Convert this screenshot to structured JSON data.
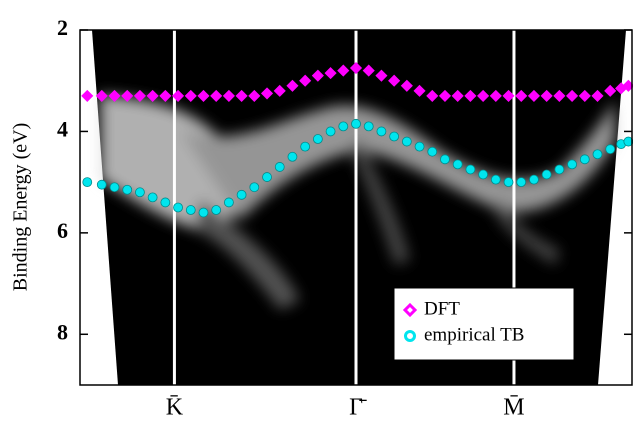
{
  "chart_data": {
    "type": "scatter",
    "y_label": "Binding Energy (eV)",
    "ylim": [
      9,
      2
    ],
    "yticks": [
      2,
      4,
      6,
      8
    ],
    "xlim": [
      -1.52,
      1.52
    ],
    "xticks": [
      {
        "value": -1,
        "label": "K̄"
      },
      {
        "value": 0,
        "label": "Γ̄"
      },
      {
        "value": 0.87,
        "label": "M̄"
      }
    ],
    "legend": "lower right",
    "series": [
      {
        "name": "DFT",
        "color": "#ff00ff",
        "marker": "diamond",
        "x": [
          -1.48,
          -1.4,
          -1.33,
          -1.26,
          -1.19,
          -1.12,
          -1.05,
          -0.98,
          -0.91,
          -0.84,
          -0.77,
          -0.7,
          -0.63,
          -0.56,
          -0.49,
          -0.42,
          -0.35,
          -0.28,
          -0.21,
          -0.14,
          -0.07,
          0,
          0.07,
          0.14,
          0.21,
          0.28,
          0.35,
          0.42,
          0.49,
          0.56,
          0.63,
          0.7,
          0.77,
          0.84,
          0.91,
          0.98,
          1.05,
          1.12,
          1.19,
          1.26,
          1.33,
          1.4,
          1.46,
          1.5
        ],
        "values": [
          3.3,
          3.3,
          3.3,
          3.3,
          3.3,
          3.3,
          3.3,
          3.3,
          3.3,
          3.3,
          3.3,
          3.3,
          3.3,
          3.3,
          3.25,
          3.2,
          3.1,
          3.0,
          2.9,
          2.85,
          2.8,
          2.75,
          2.8,
          2.9,
          3.0,
          3.1,
          3.2,
          3.3,
          3.3,
          3.3,
          3.3,
          3.3,
          3.3,
          3.3,
          3.3,
          3.3,
          3.3,
          3.3,
          3.3,
          3.3,
          3.3,
          3.2,
          3.15,
          3.1
        ]
      },
      {
        "name": "empirical TB",
        "color": "#00e5ee",
        "marker": "circle",
        "x": [
          -1.48,
          -1.4,
          -1.33,
          -1.26,
          -1.19,
          -1.12,
          -1.05,
          -0.98,
          -0.91,
          -0.84,
          -0.77,
          -0.7,
          -0.63,
          -0.56,
          -0.49,
          -0.42,
          -0.35,
          -0.28,
          -0.21,
          -0.14,
          -0.07,
          0,
          0.07,
          0.14,
          0.21,
          0.28,
          0.35,
          0.42,
          0.49,
          0.56,
          0.63,
          0.7,
          0.77,
          0.84,
          0.91,
          0.98,
          1.05,
          1.12,
          1.19,
          1.26,
          1.33,
          1.4,
          1.46,
          1.5
        ],
        "values": [
          5.0,
          5.05,
          5.1,
          5.15,
          5.2,
          5.3,
          5.4,
          5.5,
          5.55,
          5.6,
          5.55,
          5.4,
          5.25,
          5.1,
          4.9,
          4.7,
          4.5,
          4.3,
          4.15,
          4.0,
          3.9,
          3.85,
          3.9,
          4.0,
          4.1,
          4.2,
          4.3,
          4.4,
          4.55,
          4.65,
          4.75,
          4.85,
          4.95,
          5.0,
          5.0,
          4.95,
          4.85,
          4.75,
          4.65,
          4.55,
          4.45,
          4.35,
          4.25,
          4.2
        ]
      }
    ]
  }
}
